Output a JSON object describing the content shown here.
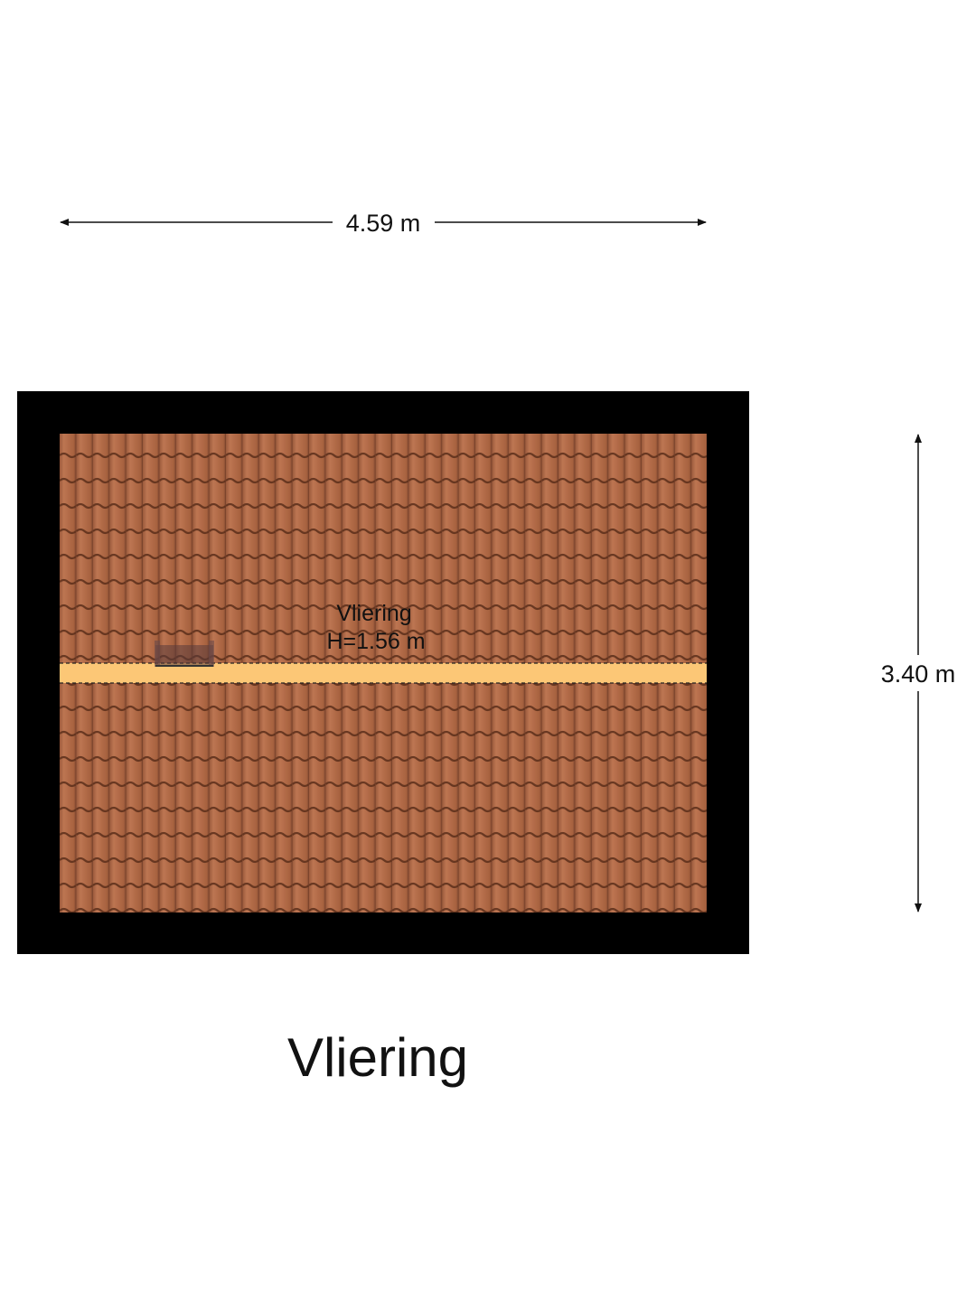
{
  "plan": {
    "width_label": "4.59 m",
    "height_label": "3.40 m",
    "room_name": "Vliering",
    "room_height": "H=1.56 m",
    "floor_title": "Vliering"
  },
  "colors": {
    "wall": "#000000",
    "roof_tile": "#b26b48",
    "tile_shadow": "#5a2e1a",
    "ridge_band": "#fcc776"
  }
}
